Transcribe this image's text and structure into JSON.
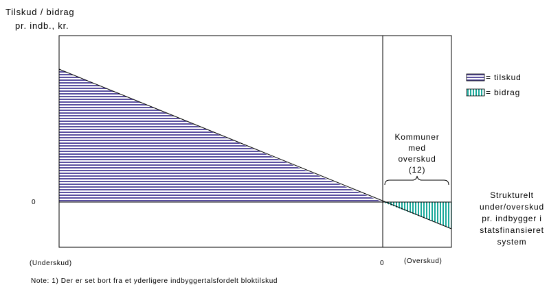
{
  "y_axis_label": [
    "Tilskud / bidrag",
    "pr. indb., kr."
  ],
  "zero_y": "0",
  "zero_x": "0",
  "left_label": "(Underskud)",
  "right_label": "(Overskud)",
  "legend": [
    {
      "label": "= tilskud"
    },
    {
      "label": "= bidrag"
    }
  ],
  "group_label": [
    "Kommuner",
    "med",
    "overskud",
    "(12)"
  ],
  "x_axis_label": [
    "Strukturelt",
    "under/overskud",
    "pr. indbygger i",
    "statsfinansieret",
    "system"
  ],
  "note": "Note: 1) Der er set bort fra et yderligere indbyggertalsfordelt bloktilskud"
}
